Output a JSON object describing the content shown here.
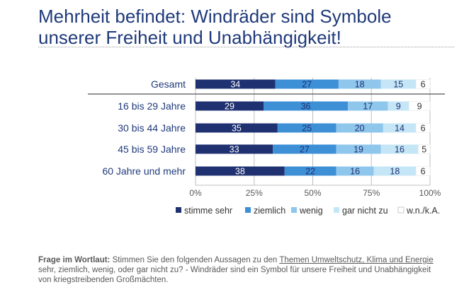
{
  "title": "Mehrheit befindet: Windräder sind Symbole unserer Freiheit und Unabhängigkeit!",
  "colors": {
    "stimme_sehr": "#1f3171",
    "ziemlich": "#3d8fd6",
    "wenig": "#8ec6ec",
    "gar_nicht_zu": "#c5e6f6",
    "wnka": "#ffffff",
    "title": "#1f3a7a"
  },
  "chart_data": {
    "type": "bar",
    "orientation": "horizontal",
    "stacked": true,
    "categories": [
      "Gesamt",
      "16 bis 29 Jahre",
      "30 bis 44 Jahre",
      "45 bis 59 Jahre",
      "60 Jahre und mehr"
    ],
    "series": [
      {
        "name": "stimme sehr",
        "values": [
          34,
          29,
          35,
          33,
          38
        ]
      },
      {
        "name": "ziemlich",
        "values": [
          27,
          36,
          25,
          27,
          22
        ]
      },
      {
        "name": "wenig",
        "values": [
          18,
          17,
          20,
          19,
          16
        ]
      },
      {
        "name": "gar nicht zu",
        "values": [
          15,
          9,
          14,
          16,
          18
        ]
      },
      {
        "name": "w.n./k.A.",
        "values": [
          6,
          9,
          6,
          5,
          6
        ]
      }
    ],
    "xticks": [
      "0%",
      "25%",
      "50%",
      "75%",
      "100%"
    ],
    "xlim": [
      0,
      100
    ],
    "legend_position": "bottom"
  },
  "footnote": {
    "label": "Frage im Wortlaut:",
    "text_before": "Stimmen Sie den folgenden Aussagen zu den",
    "underlined": "Themen Umweltschutz, Klima und Energie",
    "text_after": "sehr, ziemlich, wenig, oder gar nicht zu? - Windräder sind ein Symbol für unsere Freiheit und Unabhängigkeit von kriegstreibenden Großmächten."
  }
}
